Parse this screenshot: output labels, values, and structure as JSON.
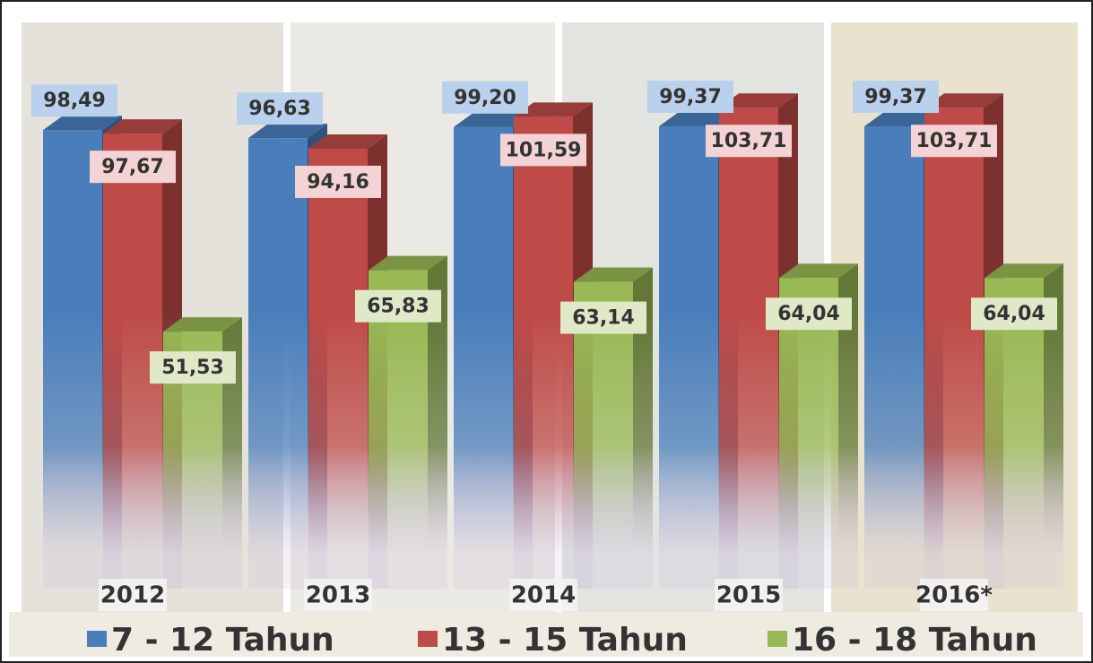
{
  "chart_data": {
    "type": "bar3d",
    "categories": [
      "2012",
      "2013",
      "2014",
      "2015",
      "2016*"
    ],
    "series": [
      {
        "name": "7 - 12 Tahun",
        "color": "#4a7ebb",
        "values": [
          98.49,
          96.63,
          99.2,
          99.37,
          99.37
        ],
        "value_labels": [
          "98,49",
          "96,63",
          "99,20",
          "99,37",
          "99,37"
        ]
      },
      {
        "name": "13 - 15 Tahun",
        "color": "#be4b48",
        "values": [
          97.67,
          94.16,
          101.59,
          103.71,
          103.71
        ],
        "value_labels": [
          "97,67",
          "94,16",
          "101,59",
          "103,71",
          "103,71"
        ]
      },
      {
        "name": "16 - 18 Tahun",
        "color": "#98b954",
        "values": [
          51.53,
          65.83,
          63.14,
          64.04,
          64.04
        ],
        "value_labels": [
          "51,53",
          "65,83",
          "63,14",
          "64,04",
          "64,04"
        ]
      }
    ]
  }
}
